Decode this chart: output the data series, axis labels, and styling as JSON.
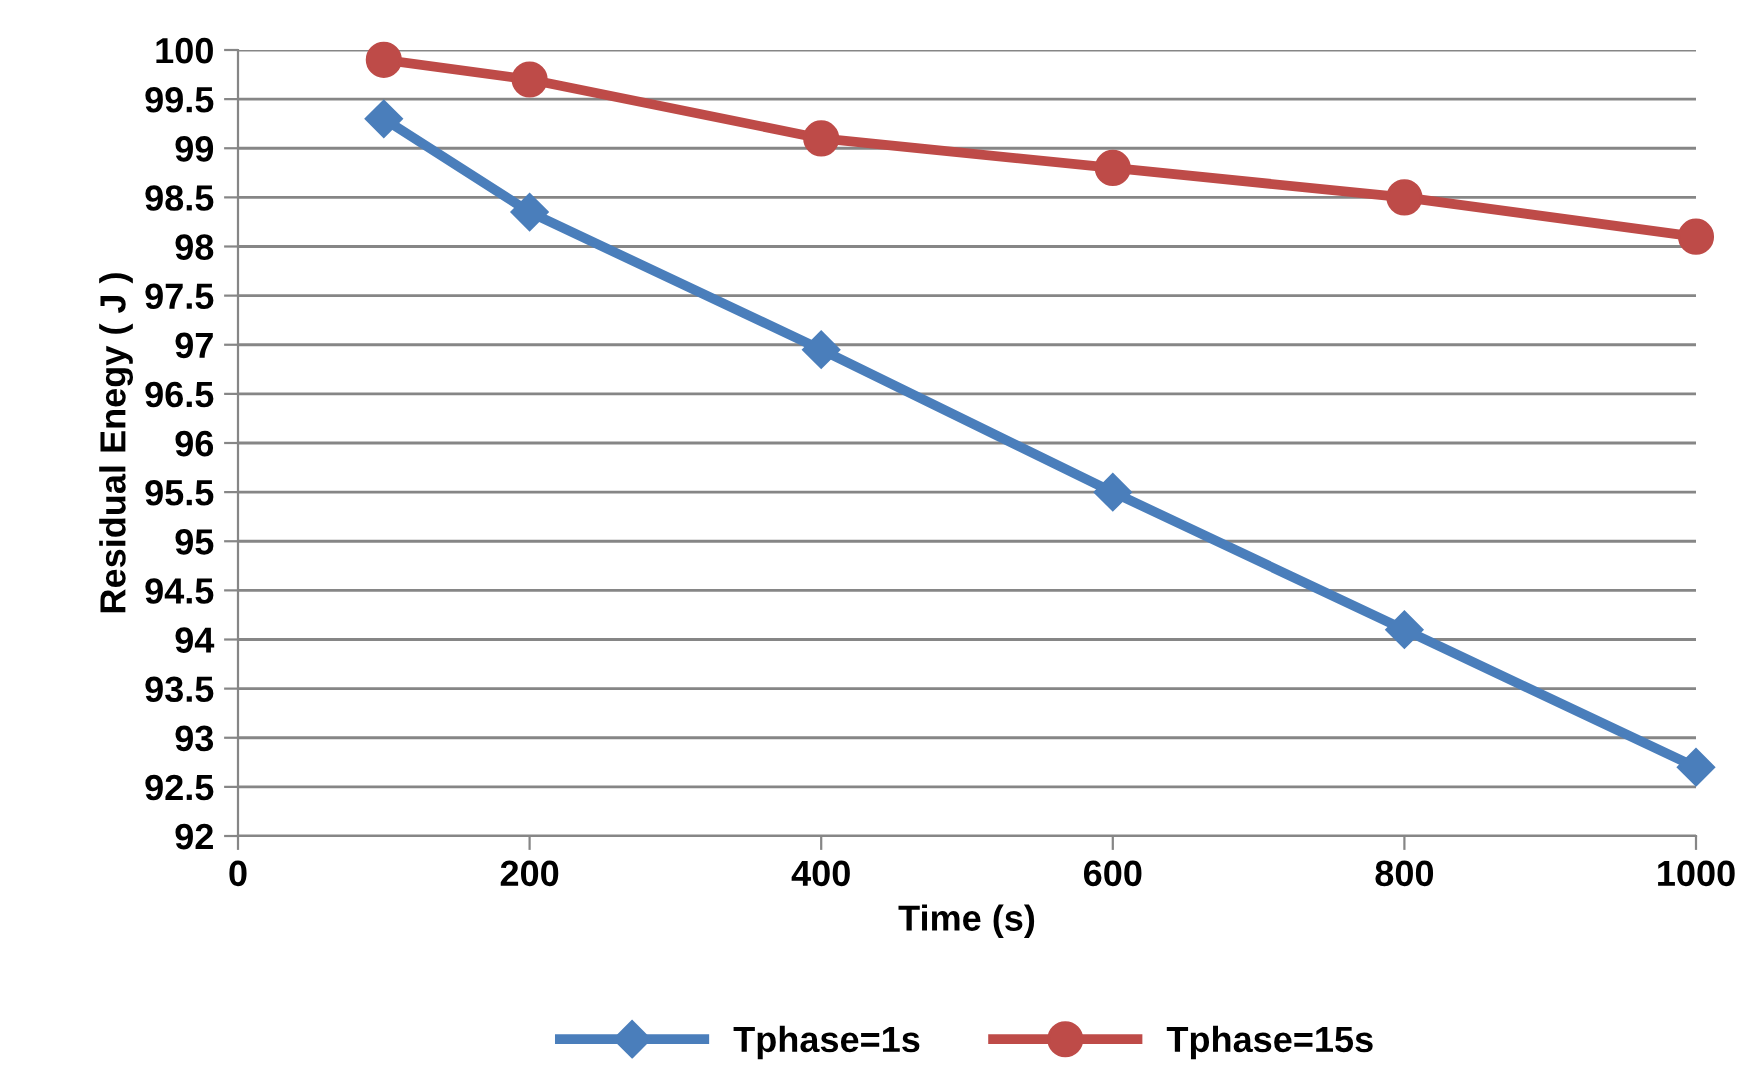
{
  "chart_data": {
    "type": "line",
    "xlabel": "Time (s)",
    "ylabel": "Residual Enegy ( J )",
    "x": [
      100,
      200,
      400,
      600,
      800,
      1000
    ],
    "series": [
      {
        "name": "Tphase=1s",
        "color": "#4a7ebb",
        "marker": "diamond",
        "values": [
          99.3,
          98.35,
          96.95,
          95.5,
          94.1,
          92.7
        ]
      },
      {
        "name": "Tphase=15s",
        "color": "#be4b48",
        "marker": "circle",
        "values": [
          99.9,
          99.7,
          99.1,
          98.8,
          98.5,
          98.1
        ]
      }
    ],
    "xlim": [
      0,
      1000
    ],
    "xticks": [
      0,
      200,
      400,
      600,
      800,
      1000
    ],
    "ylim": [
      92,
      100
    ],
    "yticks": [
      92,
      92.5,
      93,
      93.5,
      94,
      94.5,
      95,
      95.5,
      96,
      96.5,
      97,
      97.5,
      98,
      98.5,
      99,
      99.5,
      100
    ],
    "grid": "y",
    "legend": "bottom",
    "line_style": "solid"
  }
}
